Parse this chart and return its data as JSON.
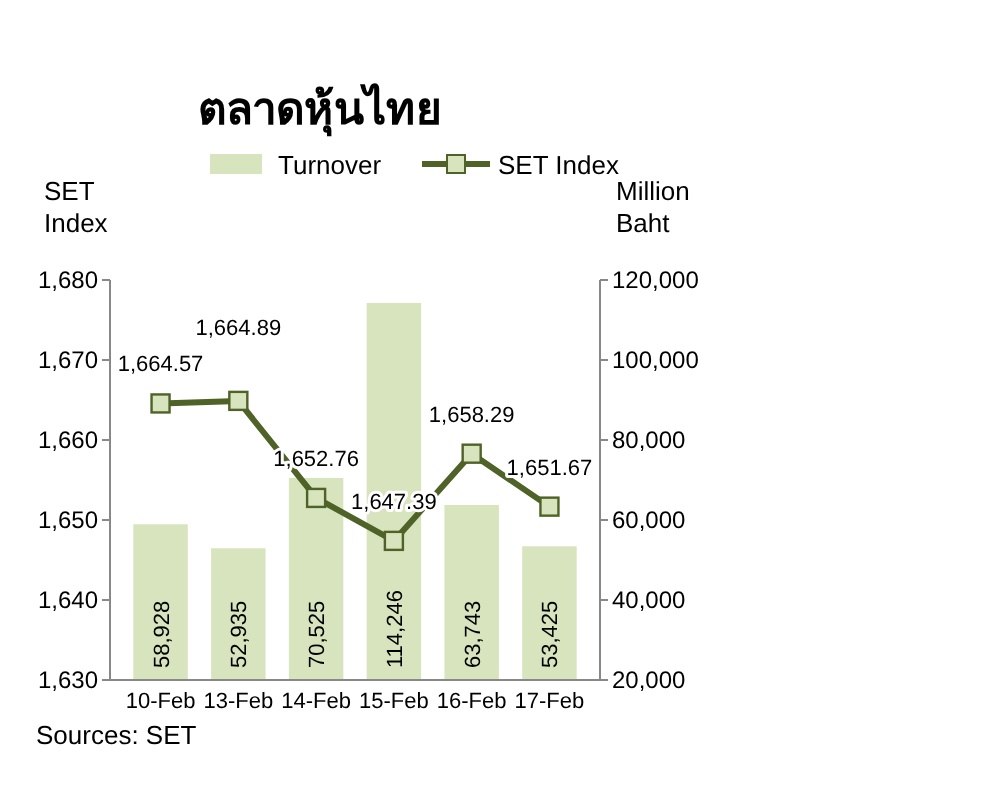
{
  "chart_data": {
    "type": "bar",
    "title": "ตลาดหุ้นไทย",
    "categories": [
      "10-Feb",
      "13-Feb",
      "14-Feb",
      "15-Feb",
      "16-Feb",
      "17-Feb"
    ],
    "series": [
      {
        "name": "Turnover",
        "axis": "y2",
        "color": "#d7e4bd",
        "values": [
          58928,
          52935,
          70525,
          114246,
          63743,
          53425
        ],
        "value_labels": [
          "58,928",
          "52,935",
          "70,525",
          "114,246",
          "63,743",
          "53,425"
        ]
      },
      {
        "name": "SET Index",
        "type": "line",
        "color": "#4f6228",
        "values": [
          1664.57,
          1664.89,
          1652.76,
          1647.39,
          1658.29,
          1651.67
        ],
        "value_labels": [
          "1,664.57",
          "1,664.89",
          "1,652.76",
          "1,647.39",
          "1,658.29",
          "1,651.67"
        ]
      }
    ],
    "ylabel": "SET Index",
    "y2label": "Million Baht",
    "ylim": [
      1630,
      1680
    ],
    "yticks": [
      {
        "value": 1630,
        "label": "1,630"
      },
      {
        "value": 1640,
        "label": "1,640"
      },
      {
        "value": 1650,
        "label": "1,650"
      },
      {
        "value": 1660,
        "label": "1,660"
      },
      {
        "value": 1670,
        "label": "1,670"
      },
      {
        "value": 1680,
        "label": "1,680"
      }
    ],
    "y2lim": [
      20000,
      120000
    ],
    "y2ticks": [
      {
        "value": 20000,
        "label": "20,000"
      },
      {
        "value": 40000,
        "label": "40,000"
      },
      {
        "value": 60000,
        "label": "60,000"
      },
      {
        "value": 80000,
        "label": "80,000"
      },
      {
        "value": 100000,
        "label": "100,000"
      },
      {
        "value": 120000,
        "label": "120,000"
      }
    ],
    "legend": "top",
    "marker": "square",
    "line_style": "solid",
    "grid": false,
    "annotations": [
      "Sources: SET"
    ]
  }
}
